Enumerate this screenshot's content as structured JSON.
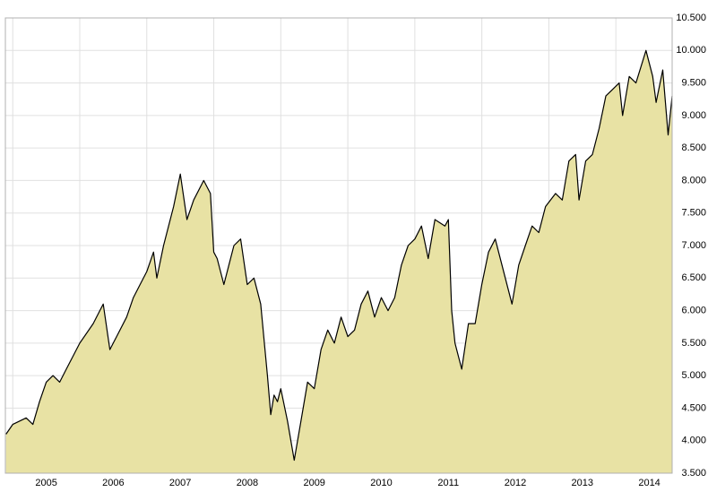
{
  "chart_data": {
    "type": "area",
    "x": [
      2004.9,
      2005.0,
      2005.2,
      2005.3,
      2005.4,
      2005.5,
      2005.6,
      2005.7,
      2005.8,
      2005.9,
      2006.0,
      2006.2,
      2006.3,
      2006.35,
      2006.45,
      2006.55,
      2006.7,
      2006.8,
      2006.9,
      2007.0,
      2007.1,
      2007.15,
      2007.25,
      2007.4,
      2007.5,
      2007.6,
      2007.7,
      2007.85,
      2007.95,
      2008.0,
      2008.05,
      2008.15,
      2008.3,
      2008.4,
      2008.5,
      2008.6,
      2008.7,
      2008.8,
      2008.85,
      2008.9,
      2008.95,
      2009.0,
      2009.1,
      2009.2,
      2009.3,
      2009.4,
      2009.5,
      2009.6,
      2009.7,
      2009.8,
      2009.9,
      2010.0,
      2010.1,
      2010.2,
      2010.3,
      2010.4,
      2010.5,
      2010.6,
      2010.7,
      2010.8,
      2010.9,
      2011.0,
      2011.1,
      2011.2,
      2011.3,
      2011.45,
      2011.5,
      2011.55,
      2011.6,
      2011.7,
      2011.8,
      2011.9,
      2012.0,
      2012.1,
      2012.2,
      2012.3,
      2012.45,
      2012.55,
      2012.65,
      2012.75,
      2012.85,
      2012.95,
      2013.1,
      2013.2,
      2013.3,
      2013.4,
      2013.45,
      2013.55,
      2013.65,
      2013.75,
      2013.85,
      2013.95,
      2014.05,
      2014.1,
      2014.2,
      2014.3,
      2014.45,
      2014.55,
      2014.6,
      2014.7,
      2014.78,
      2014.84
    ],
    "values": [
      4100,
      4250,
      4350,
      4250,
      4600,
      4900,
      5000,
      4900,
      5100,
      5300,
      5500,
      5800,
      6000,
      6100,
      5400,
      5600,
      5900,
      6200,
      6400,
      6600,
      6900,
      6500,
      7000,
      7600,
      8100,
      7400,
      7700,
      8000,
      7800,
      6900,
      6800,
      6400,
      7000,
      7100,
      6400,
      6500,
      6100,
      5000,
      4400,
      4700,
      4600,
      4800,
      4300,
      3700,
      4300,
      4900,
      4800,
      5400,
      5700,
      5500,
      5900,
      5600,
      5700,
      6100,
      6300,
      5900,
      6200,
      6000,
      6200,
      6700,
      7000,
      7100,
      7300,
      6800,
      7400,
      7300,
      7400,
      6000,
      5500,
      5100,
      5800,
      5800,
      6400,
      6900,
      7100,
      6700,
      6100,
      6700,
      7000,
      7300,
      7200,
      7600,
      7800,
      7700,
      8300,
      8400,
      7700,
      8300,
      8400,
      8800,
      9300,
      9400,
      9500,
      9000,
      9600,
      9500,
      10000,
      9600,
      9200,
      9700,
      8700,
      9300
    ],
    "color": "#e8e2a4",
    "line_color": "#000000",
    "xlim": [
      2004.89,
      2014.84
    ],
    "xticks": [
      {
        "value": 2005,
        "label": "2005"
      },
      {
        "value": 2006,
        "label": "2006"
      },
      {
        "value": 2007,
        "label": "2007"
      },
      {
        "value": 2008,
        "label": "2008"
      },
      {
        "value": 2009,
        "label": "2009"
      },
      {
        "value": 2010,
        "label": "2010"
      },
      {
        "value": 2011,
        "label": "2011"
      },
      {
        "value": 2012,
        "label": "2012"
      },
      {
        "value": 2013,
        "label": "2013"
      },
      {
        "value": 2014,
        "label": "2014"
      }
    ],
    "ylim": [
      3500,
      10500
    ],
    "yticks": [
      {
        "value": 3500,
        "label": "3.500"
      },
      {
        "value": 4000,
        "label": "4.000"
      },
      {
        "value": 4500,
        "label": "4.500"
      },
      {
        "value": 5000,
        "label": "5.000"
      },
      {
        "value": 5500,
        "label": "5.500"
      },
      {
        "value": 6000,
        "label": "6.000"
      },
      {
        "value": 6500,
        "label": "6.500"
      },
      {
        "value": 7000,
        "label": "7.000"
      },
      {
        "value": 7500,
        "label": "7.500"
      },
      {
        "value": 8000,
        "label": "8.000"
      },
      {
        "value": 8500,
        "label": "8.500"
      },
      {
        "value": 9000,
        "label": "9.000"
      },
      {
        "value": 9500,
        "label": "9.500"
      },
      {
        "value": 10000,
        "label": "10.000"
      },
      {
        "value": 10500,
        "label": "10.500"
      }
    ],
    "grid": true
  }
}
